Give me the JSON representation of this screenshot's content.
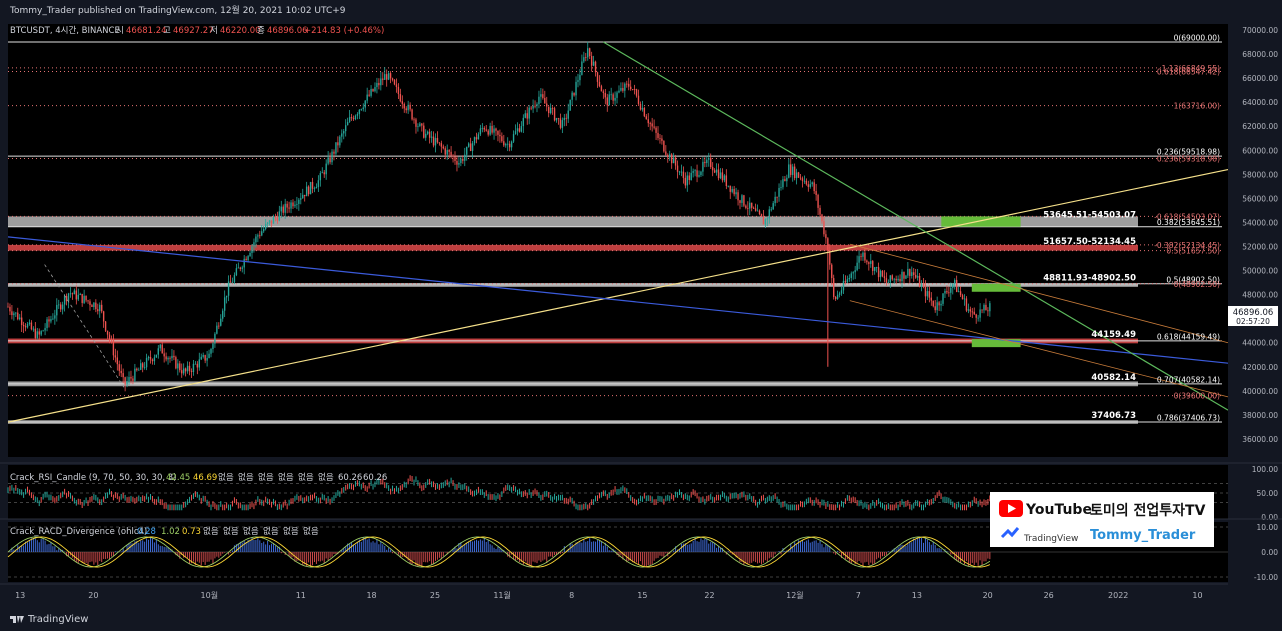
{
  "header": {
    "published": "Tommy_Trader published on TradingView.com, 12월 20, 2021 10:02 UTC+9"
  },
  "footer": {
    "brand": "TradingView"
  },
  "legend": {
    "symbol": "BTCUSDT, 4시간, BINANCE",
    "o_label": "시",
    "o": "46681.24",
    "h_label": "고",
    "h": "46927.27",
    "l_label": "저",
    "l": "46220.00",
    "c_label": "종",
    "c": "46896.06",
    "chg": "+214.83 (+0.46%)"
  },
  "last_price": {
    "value": "46896.06",
    "countdown": "02:57:20",
    "price": 46896.06
  },
  "rsi_title": "Crack_RSI_Candle (9, 70, 50, 30, 30, 3)",
  "rsi_values": [
    "42.45",
    "46.69",
    "60.26",
    "60.26"
  ],
  "racd_title": "Crack_RACD_Divergence (ohlc4)",
  "racd_values": [
    "0.28",
    "1.02",
    "0.73"
  ],
  "na_text": "없음",
  "watermark": {
    "youtube": "YouTube",
    "channel": "토미의 전업투자TV",
    "tv": "TradingView",
    "handle": "Tommy_Trader"
  },
  "colors": {
    "up": "#26a69a",
    "down": "#ef5350",
    "green_fib": "#66bb3a",
    "yellow_line": "#f5e08a",
    "blue_line": "#3b5bdb",
    "green_line": "#5cb85c",
    "orange": "#c77b3a",
    "fib_red": "#e57373"
  },
  "chart_data": {
    "type": "candlestick",
    "ylim": [
      34500,
      70500
    ],
    "x_ticks": [
      {
        "label": "13",
        "x": 0.01
      },
      {
        "label": "20",
        "x": 0.07
      },
      {
        "label": "10월",
        "x": 0.165
      },
      {
        "label": "11",
        "x": 0.24
      },
      {
        "label": "18",
        "x": 0.298
      },
      {
        "label": "25",
        "x": 0.35
      },
      {
        "label": "11월",
        "x": 0.405
      },
      {
        "label": "8",
        "x": 0.462
      },
      {
        "label": "15",
        "x": 0.52
      },
      {
        "label": "22",
        "x": 0.575
      },
      {
        "label": "12월",
        "x": 0.645
      },
      {
        "label": "7",
        "x": 0.697
      },
      {
        "label": "13",
        "x": 0.745
      },
      {
        "label": "20",
        "x": 0.803
      },
      {
        "label": "26",
        "x": 0.853
      },
      {
        "label": "2022",
        "x": 0.91
      },
      {
        "label": "10",
        "x": 0.975
      }
    ],
    "y_ticks": [
      "70000.00",
      "68000.00",
      "66000.00",
      "64000.00",
      "62000.00",
      "60000.00",
      "58000.00",
      "56000.00",
      "54000.00",
      "52000.00",
      "50000.00",
      "48000.00",
      "46000.00",
      "44000.00",
      "42000.00",
      "40000.00",
      "38000.00",
      "36000.00"
    ],
    "price_path": [
      {
        "x": 0.0,
        "y": 47000
      },
      {
        "x": 0.025,
        "y": 44500
      },
      {
        "x": 0.05,
        "y": 48200
      },
      {
        "x": 0.075,
        "y": 47000
      },
      {
        "x": 0.095,
        "y": 40500
      },
      {
        "x": 0.125,
        "y": 43500
      },
      {
        "x": 0.145,
        "y": 41500
      },
      {
        "x": 0.165,
        "y": 43000
      },
      {
        "x": 0.18,
        "y": 48500
      },
      {
        "x": 0.205,
        "y": 53000
      },
      {
        "x": 0.225,
        "y": 55000
      },
      {
        "x": 0.255,
        "y": 57500
      },
      {
        "x": 0.28,
        "y": 62500
      },
      {
        "x": 0.31,
        "y": 66300
      },
      {
        "x": 0.34,
        "y": 61500
      },
      {
        "x": 0.37,
        "y": 59000
      },
      {
        "x": 0.39,
        "y": 62000
      },
      {
        "x": 0.41,
        "y": 60500
      },
      {
        "x": 0.435,
        "y": 64500
      },
      {
        "x": 0.455,
        "y": 62000
      },
      {
        "x": 0.475,
        "y": 68500
      },
      {
        "x": 0.49,
        "y": 64000
      },
      {
        "x": 0.51,
        "y": 65500
      },
      {
        "x": 0.53,
        "y": 61500
      },
      {
        "x": 0.555,
        "y": 57500
      },
      {
        "x": 0.575,
        "y": 59000
      },
      {
        "x": 0.6,
        "y": 56000
      },
      {
        "x": 0.62,
        "y": 54000
      },
      {
        "x": 0.64,
        "y": 58500
      },
      {
        "x": 0.66,
        "y": 57000
      },
      {
        "x": 0.672,
        "y": 52000
      },
      {
        "x": 0.677,
        "y": 47500
      },
      {
        "x": 0.69,
        "y": 49500
      },
      {
        "x": 0.7,
        "y": 51500
      },
      {
        "x": 0.72,
        "y": 49000
      },
      {
        "x": 0.74,
        "y": 50000
      },
      {
        "x": 0.76,
        "y": 47000
      },
      {
        "x": 0.775,
        "y": 49000
      },
      {
        "x": 0.79,
        "y": 46300
      },
      {
        "x": 0.805,
        "y": 46896
      }
    ],
    "h_levels": [
      {
        "label": "0(69000.00)",
        "value": 69000,
        "style": "white"
      },
      {
        "label": "1.13(66849.55)",
        "value": 66849.55,
        "style": "redline"
      },
      {
        "label": "0.618(66547.42)",
        "value": 66547.42,
        "style": "redline"
      },
      {
        "label": "1(63716.00)",
        "value": 63716,
        "style": "redline"
      },
      {
        "label": "0.236(59518.98)",
        "value": 59518.98,
        "style": "white"
      },
      {
        "label": "0.236(59318.98)",
        "value": 59318.98,
        "style": "redline"
      },
      {
        "label": "-0.618(54503.07)",
        "value": 54503.07,
        "style": "redline"
      },
      {
        "label": "0.382(53645.51)",
        "value": 53645.51,
        "style": "white"
      },
      {
        "label": "-0.382(52134.45)",
        "value": 52134.45,
        "style": "redline"
      },
      {
        "label": "0.5(51657.50)",
        "value": 51657.5,
        "style": "redline"
      },
      {
        "label": "0.5(48902.50)",
        "value": 48902.5,
        "style": "white"
      },
      {
        "label": "0(48902.50)",
        "value": 48902.5,
        "style": "redline"
      },
      {
        "label": "0.618(44159.49)",
        "value": 44159.49,
        "style": "white"
      },
      {
        "label": "0.707(40582.14)",
        "value": 40582.14,
        "style": "white"
      },
      {
        "label": "0(39600.00)",
        "value": 39600,
        "style": "redline"
      },
      {
        "label": "0.786(37406.73)",
        "value": 37406.73,
        "style": "white"
      }
    ],
    "zones": [
      {
        "label": "53645.51-54503.07",
        "from": 53645.51,
        "to": 54503.07,
        "color": "#b8b8b8"
      },
      {
        "label": "51657.50-52134.45",
        "from": 51657.5,
        "to": 52134.45,
        "color": "#e04a4a"
      },
      {
        "label": "48811.93-48902.50",
        "from": 48811.93,
        "to": 48902.5,
        "color": "#cfcfcf"
      },
      {
        "label": "44159.49",
        "from": 43950,
        "to": 44350,
        "color": "#e04a4a"
      },
      {
        "label": "40582.14",
        "from": 40382.14,
        "to": 40782.14,
        "color": "#b8b8b8"
      },
      {
        "label": "37406.73",
        "from": 37256.73,
        "to": 37556.73,
        "color": "#b8b8b8"
      }
    ],
    "green_boxes": [
      {
        "x1": 0.765,
        "x2": 0.83,
        "from": 53645.51,
        "to": 54503.07
      },
      {
        "x1": 0.79,
        "x2": 0.83,
        "from": 48500,
        "to": 48902.5
      },
      {
        "x1": 0.79,
        "x2": 0.83,
        "from": 43800,
        "to": 44300
      }
    ],
    "trend_lines": [
      {
        "color": "yellow",
        "p1": {
          "x": 0.0,
          "y": 37400
        },
        "p2": {
          "x": 1.0,
          "y": 58400
        }
      },
      {
        "color": "blue",
        "p1": {
          "x": 0.0,
          "y": 52800
        },
        "p2": {
          "x": 1.0,
          "y": 42300
        }
      },
      {
        "color": "green",
        "p1": {
          "x": 0.488,
          "y": 69000
        },
        "p2": {
          "x": 1.0,
          "y": 38400
        }
      },
      {
        "color": "orange",
        "p1": {
          "x": 0.69,
          "y": 52200
        },
        "p2": {
          "x": 1.0,
          "y": 44000
        }
      },
      {
        "color": "orange",
        "p1": {
          "x": 0.69,
          "y": 47500
        },
        "p2": {
          "x": 1.0,
          "y": 39500
        }
      }
    ],
    "rsi": {
      "ylim": [
        0,
        100
      ],
      "ticks": [
        "100.00",
        "50.00",
        "0.00"
      ]
    },
    "racd": {
      "ylim": [
        -12,
        12
      ],
      "ticks": [
        "10.00",
        "0.00",
        "-10.00"
      ]
    }
  }
}
